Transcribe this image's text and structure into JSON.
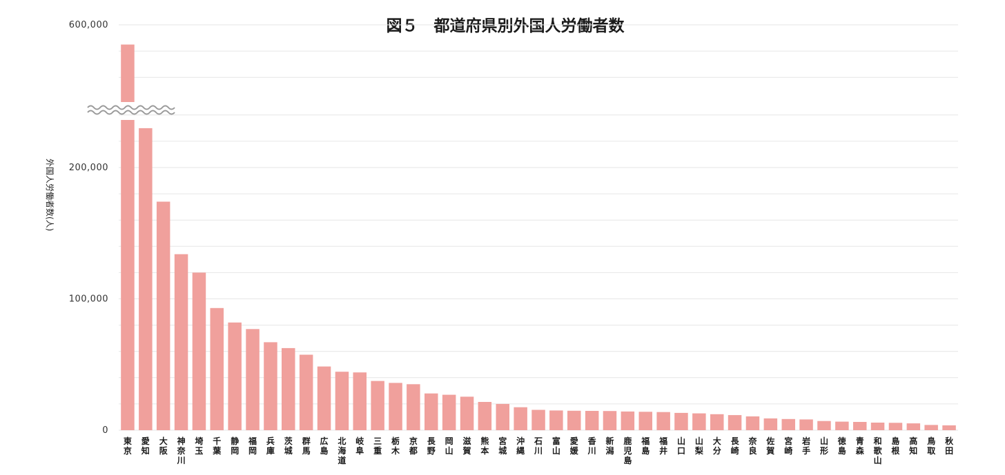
{
  "chart_data": {
    "type": "bar",
    "title": "図５　都道府県別外国人労働者数",
    "xlabel": "",
    "ylabel": "外国人労働者数(人)",
    "yticks": [
      0,
      100000,
      200000,
      600000
    ],
    "ytick_labels": [
      "0",
      "100,000",
      "200,000",
      "600,000"
    ],
    "axis_break": true,
    "grid": true,
    "bar_color": "#f0a09c",
    "categories": [
      "東京",
      "愛知",
      "大阪",
      "神奈川",
      "埼玉",
      "千葉",
      "静岡",
      "福岡",
      "兵庫",
      "茨城",
      "群馬",
      "広島",
      "北海道",
      "岐阜",
      "三重",
      "栃木",
      "京都",
      "長野",
      "岡山",
      "滋賀",
      "熊本",
      "宮城",
      "沖縄",
      "石川",
      "富山",
      "愛媛",
      "香川",
      "新潟",
      "鹿児島",
      "福島",
      "福井",
      "山口",
      "山梨",
      "大分",
      "長崎",
      "奈良",
      "佐賀",
      "宮崎",
      "岩手",
      "山形",
      "徳島",
      "青森",
      "和歌山",
      "島根",
      "高知",
      "鳥取",
      "秋田"
    ],
    "values": [
      585000,
      230000,
      174000,
      134000,
      120000,
      93000,
      82000,
      77000,
      67000,
      62500,
      57500,
      48500,
      44500,
      44000,
      37500,
      36000,
      35000,
      28000,
      27000,
      25500,
      21500,
      20000,
      17500,
      15500,
      15000,
      14800,
      14700,
      14600,
      14200,
      14000,
      13800,
      13200,
      12800,
      12200,
      11500,
      10500,
      9000,
      8500,
      8200,
      7000,
      6500,
      6300,
      5800,
      5600,
      5200,
      4000,
      3700
    ]
  }
}
